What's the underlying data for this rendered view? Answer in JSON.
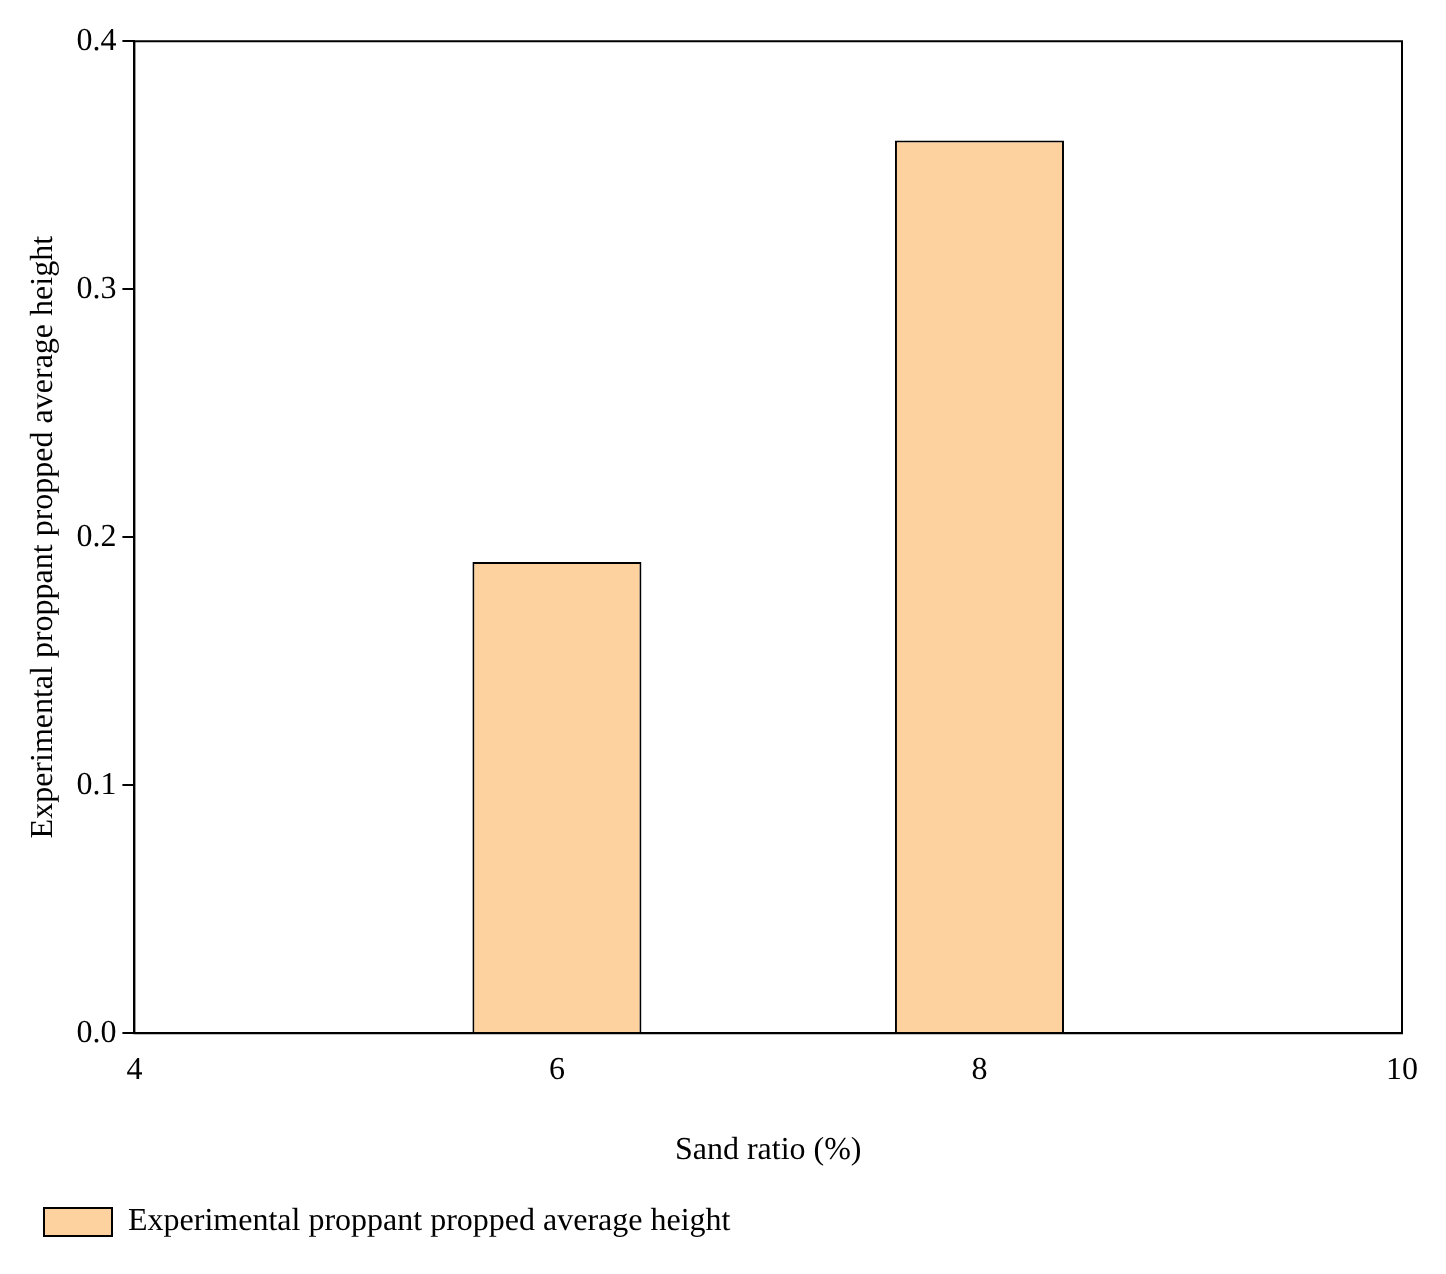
{
  "chart_data": {
    "type": "bar",
    "xlabel": "Sand ratio (%)",
    "ylabel": "Experimental proppant propped average height",
    "x": [
      6,
      8
    ],
    "series": [
      {
        "name": "Experimental proppant propped average height",
        "color": "#fdd29f",
        "values": [
          0.19,
          0.36
        ]
      }
    ],
    "xlim": [
      4,
      10
    ],
    "xticks": [
      4,
      6,
      8,
      10
    ],
    "ylim": [
      0,
      0.4
    ],
    "yticks": [
      {
        "value": 0,
        "label": "0.0"
      },
      0.1,
      0.2,
      0.3,
      0.4
    ],
    "grid": false,
    "legend": "bottom"
  }
}
